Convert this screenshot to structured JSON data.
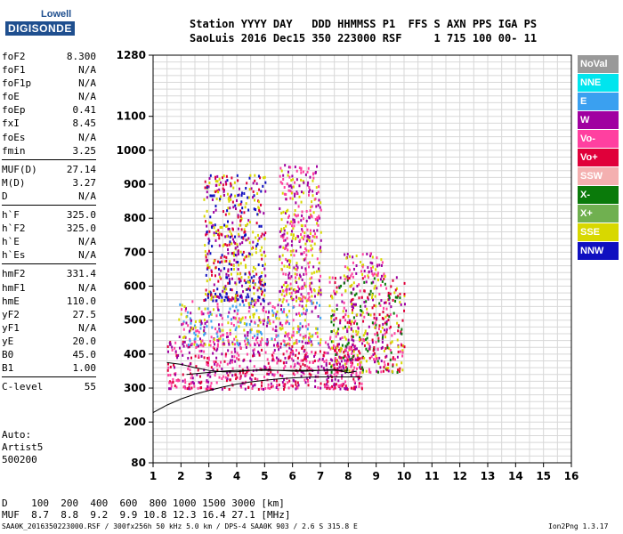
{
  "logo": {
    "top": "Lowell",
    "bottom": "DIGISONDE"
  },
  "header": {
    "line1": "Station YYYY DAY   DDD HHMMSS P1  FFS S AXN PPS IGA PS",
    "line2": "SaoLuis 2016 Dec15 350 223000 RSF     1 715 100 00- 11"
  },
  "params": [
    {
      "k": "foF2",
      "v": "8.300"
    },
    {
      "k": "foF1",
      "v": "N/A"
    },
    {
      "k": "foF1p",
      "v": "N/A"
    },
    {
      "k": "foE",
      "v": "N/A"
    },
    {
      "k": "foEp",
      "v": "0.41"
    },
    {
      "k": "fxI",
      "v": "8.45"
    },
    {
      "k": "foEs",
      "v": "N/A"
    },
    {
      "k": "fmin",
      "v": "3.25"
    },
    {
      "k": "MUF(D)",
      "v": "27.14"
    },
    {
      "k": "M(D)",
      "v": "3.27"
    },
    {
      "k": "D",
      "v": "N/A"
    },
    {
      "k": "h`F",
      "v": "325.0"
    },
    {
      "k": "h`F2",
      "v": "325.0"
    },
    {
      "k": "h`E",
      "v": "N/A"
    },
    {
      "k": "h`Es",
      "v": "N/A"
    },
    {
      "k": "hmF2",
      "v": "331.4"
    },
    {
      "k": "hmF1",
      "v": "N/A"
    },
    {
      "k": "hmE",
      "v": "110.0"
    },
    {
      "k": "yF2",
      "v": "27.5"
    },
    {
      "k": "yF1",
      "v": "N/A"
    },
    {
      "k": "yE",
      "v": "20.0"
    },
    {
      "k": "B0",
      "v": "45.0"
    },
    {
      "k": "B1",
      "v": "1.00"
    },
    {
      "k": "C-level",
      "v": "55"
    }
  ],
  "auto": {
    "line1": "Auto:",
    "line2": "Artist5",
    "line3": "500200"
  },
  "legend": [
    {
      "label": "NoVal",
      "color": "#999999"
    },
    {
      "label": "NNE",
      "color": "#00e5ee"
    },
    {
      "label": "E",
      "color": "#3aa0f0"
    },
    {
      "label": "W",
      "color": "#a000a0"
    },
    {
      "label": "Vo-",
      "color": "#ff40a0"
    },
    {
      "label": "Vo+",
      "color": "#e0003a"
    },
    {
      "label": "SSW",
      "color": "#f4b0b0"
    },
    {
      "label": "X-",
      "color": "#0a7a0a"
    },
    {
      "label": "X+",
      "color": "#70b050"
    },
    {
      "label": "SSE",
      "color": "#d8d800"
    },
    {
      "label": "NNW",
      "color": "#1010c0"
    }
  ],
  "bottom": {
    "d_line": "D    100  200  400  600  800 1000 1500 3000 [km]",
    "muf_line": "MUF  8.7  8.8  9.2  9.9 10.8 12.3 16.4 27.1 [MHz]"
  },
  "footer": {
    "left": "SAA0K_2016350223000.RSF / 300fx256h 50 kHz 5.0 km / DPS-4 SAA0K 903 / 2.6 S 315.8 E",
    "right": "Ion2Png 1.3.17"
  },
  "chart_data": {
    "type": "scatter",
    "xlim": [
      1,
      16
    ],
    "ylim": [
      80,
      1280
    ],
    "x_ticks": [
      1,
      2,
      3,
      4,
      5,
      6,
      7,
      8,
      9,
      10,
      11,
      12,
      13,
      14,
      15,
      16
    ],
    "y_ticks": [
      80,
      200,
      300,
      400,
      500,
      600,
      700,
      800,
      900,
      1000,
      1100,
      1280
    ],
    "grid": true,
    "legend_position": "right",
    "clusters": [
      {
        "x": [
          1.5,
          8.5
        ],
        "y": [
          300,
          440
        ],
        "colors": [
          "#e0003a",
          "#ff40a0",
          "#a000a0"
        ]
      },
      {
        "x": [
          1.9,
          7.0
        ],
        "y": [
          430,
          560
        ],
        "colors": [
          "#d8d800",
          "#3aa0f0",
          "#a000a0",
          "#ff40a0"
        ]
      },
      {
        "x": [
          2.8,
          5.0
        ],
        "y": [
          560,
          930
        ],
        "colors": [
          "#a000a0",
          "#e0003a",
          "#d8d800",
          "#1010c0"
        ]
      },
      {
        "x": [
          5.5,
          7.0
        ],
        "y": [
          560,
          960
        ],
        "colors": [
          "#d8d800",
          "#a000a0",
          "#ff40a0"
        ]
      },
      {
        "x": [
          7.3,
          10.0
        ],
        "y": [
          350,
          630
        ],
        "colors": [
          "#e0003a",
          "#ff40a0",
          "#d8d800",
          "#a000a0",
          "#0a7a0a"
        ]
      },
      {
        "x": [
          7.8,
          9.3
        ],
        "y": [
          630,
          700
        ],
        "colors": [
          "#a000a0",
          "#d8d800",
          "#ff40a0"
        ]
      }
    ],
    "traces": [
      {
        "name": "",
        "x": [
          1.0,
          1.5,
          2.0,
          2.5,
          3.0,
          3.5,
          4.0,
          4.5,
          5.0,
          5.5,
          6.0,
          6.5,
          7.0,
          7.5,
          8.0,
          8.5
        ],
        "y": [
          228,
          250,
          268,
          282,
          293,
          303,
          312,
          318,
          323,
          327,
          330,
          332,
          333,
          333,
          333,
          333
        ]
      },
      {
        "name": "",
        "x": [
          1.5,
          2.0,
          2.5,
          3.0,
          3.5,
          4.0,
          4.5,
          5.0,
          5.5,
          6.0,
          6.5,
          7.0,
          7.5,
          8.0,
          8.3
        ],
        "y": [
          375,
          370,
          360,
          352,
          348,
          348,
          352,
          355,
          352,
          350,
          350,
          352,
          355,
          345,
          350
        ]
      },
      {
        "name": "",
        "x": [
          2.2,
          3.0,
          3.5,
          4.0,
          4.5,
          5.0,
          6.0,
          7.0,
          8.0
        ],
        "y": [
          340,
          346,
          350,
          352,
          352,
          352,
          352,
          352,
          352
        ]
      }
    ]
  }
}
